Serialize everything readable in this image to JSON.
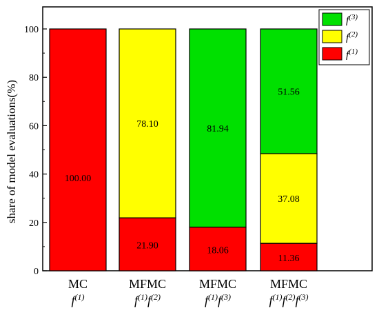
{
  "chart_data": {
    "type": "bar",
    "stacked": true,
    "ylabel": "share of model evaluations(%)",
    "ylim": [
      0,
      100
    ],
    "yticks": [
      0,
      20,
      40,
      60,
      80,
      100
    ],
    "grid": false,
    "legend_position": "top-right",
    "categories": [
      {
        "name": "MC",
        "models": [
          {
            "base": "f",
            "sup": "(1)"
          }
        ]
      },
      {
        "name": "MFMC",
        "models": [
          {
            "base": "f",
            "sup": "(1)"
          },
          {
            "base": "f",
            "sup": "(2)"
          }
        ]
      },
      {
        "name": "MFMC",
        "models": [
          {
            "base": "f",
            "sup": "(1)"
          },
          {
            "base": "f",
            "sup": "(3)"
          }
        ]
      },
      {
        "name": "MFMC",
        "models": [
          {
            "base": "f",
            "sup": "(1)"
          },
          {
            "base": "f",
            "sup": "(2)"
          },
          {
            "base": "f",
            "sup": "(3)"
          }
        ]
      }
    ],
    "series": [
      {
        "base": "f",
        "sup": "(1)",
        "color": "#ff0000",
        "values": [
          100.0,
          21.9,
          18.06,
          11.36
        ],
        "labels": [
          "100.00",
          "21.90",
          "18.06",
          "11.36"
        ]
      },
      {
        "base": "f",
        "sup": "(2)",
        "color": "#ffff00",
        "values": [
          0,
          78.1,
          0,
          37.08
        ],
        "labels": [
          "",
          "78.10",
          "",
          "37.08"
        ]
      },
      {
        "base": "f",
        "sup": "(3)",
        "color": "#00e000",
        "values": [
          0,
          0,
          81.94,
          51.56
        ],
        "labels": [
          "",
          "",
          "81.94",
          "51.56"
        ]
      }
    ]
  }
}
